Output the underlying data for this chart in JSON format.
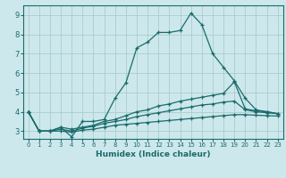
{
  "xlabel": "Humidex (Indice chaleur)",
  "bg_color": "#cde8ec",
  "line_color": "#1a6b6b",
  "grid_color": "#aacccc",
  "xlim": [
    -0.5,
    23.5
  ],
  "ylim": [
    2.6,
    9.5
  ],
  "xticks": [
    0,
    1,
    2,
    3,
    4,
    5,
    6,
    7,
    8,
    9,
    10,
    11,
    12,
    13,
    14,
    15,
    16,
    17,
    18,
    19,
    20,
    21,
    22,
    23
  ],
  "yticks": [
    3,
    4,
    5,
    6,
    7,
    8,
    9
  ],
  "series": [
    {
      "x": [
        0,
        1,
        2,
        3,
        4,
        5,
        6,
        7,
        8,
        9,
        10,
        11,
        12,
        13,
        14,
        15,
        16,
        17,
        18,
        19,
        20,
        21,
        22,
        23
      ],
      "y": [
        4.0,
        3.0,
        3.0,
        3.2,
        2.7,
        3.5,
        3.5,
        3.6,
        4.7,
        5.5,
        7.3,
        7.6,
        8.1,
        8.1,
        8.2,
        9.1,
        8.5,
        7.0,
        6.3,
        5.6,
        4.7,
        4.1,
        4.0,
        3.9
      ]
    },
    {
      "x": [
        0,
        1,
        2,
        3,
        4,
        5,
        6,
        7,
        8,
        9,
        10,
        11,
        12,
        13,
        14,
        15,
        16,
        17,
        18,
        19,
        20,
        21,
        22,
        23
      ],
      "y": [
        4.0,
        3.0,
        3.0,
        3.2,
        3.1,
        3.2,
        3.3,
        3.5,
        3.6,
        3.8,
        4.0,
        4.1,
        4.3,
        4.4,
        4.55,
        4.65,
        4.75,
        4.85,
        4.95,
        5.55,
        4.15,
        4.05,
        4.0,
        3.9
      ]
    },
    {
      "x": [
        0,
        1,
        2,
        3,
        4,
        5,
        6,
        7,
        8,
        9,
        10,
        11,
        12,
        13,
        14,
        15,
        16,
        17,
        18,
        19,
        20,
        21,
        22,
        23
      ],
      "y": [
        4.0,
        3.0,
        3.0,
        3.1,
        3.0,
        3.15,
        3.25,
        3.4,
        3.5,
        3.6,
        3.75,
        3.85,
        3.95,
        4.05,
        4.15,
        4.25,
        4.35,
        4.4,
        4.5,
        4.55,
        4.1,
        4.0,
        3.95,
        3.9
      ]
    },
    {
      "x": [
        0,
        1,
        2,
        3,
        4,
        5,
        6,
        7,
        8,
        9,
        10,
        11,
        12,
        13,
        14,
        15,
        16,
        17,
        18,
        19,
        20,
        21,
        22,
        23
      ],
      "y": [
        4.0,
        3.0,
        3.0,
        3.0,
        2.95,
        3.05,
        3.1,
        3.2,
        3.3,
        3.35,
        3.4,
        3.45,
        3.5,
        3.55,
        3.6,
        3.65,
        3.7,
        3.75,
        3.8,
        3.85,
        3.85,
        3.82,
        3.8,
        3.78
      ]
    }
  ]
}
